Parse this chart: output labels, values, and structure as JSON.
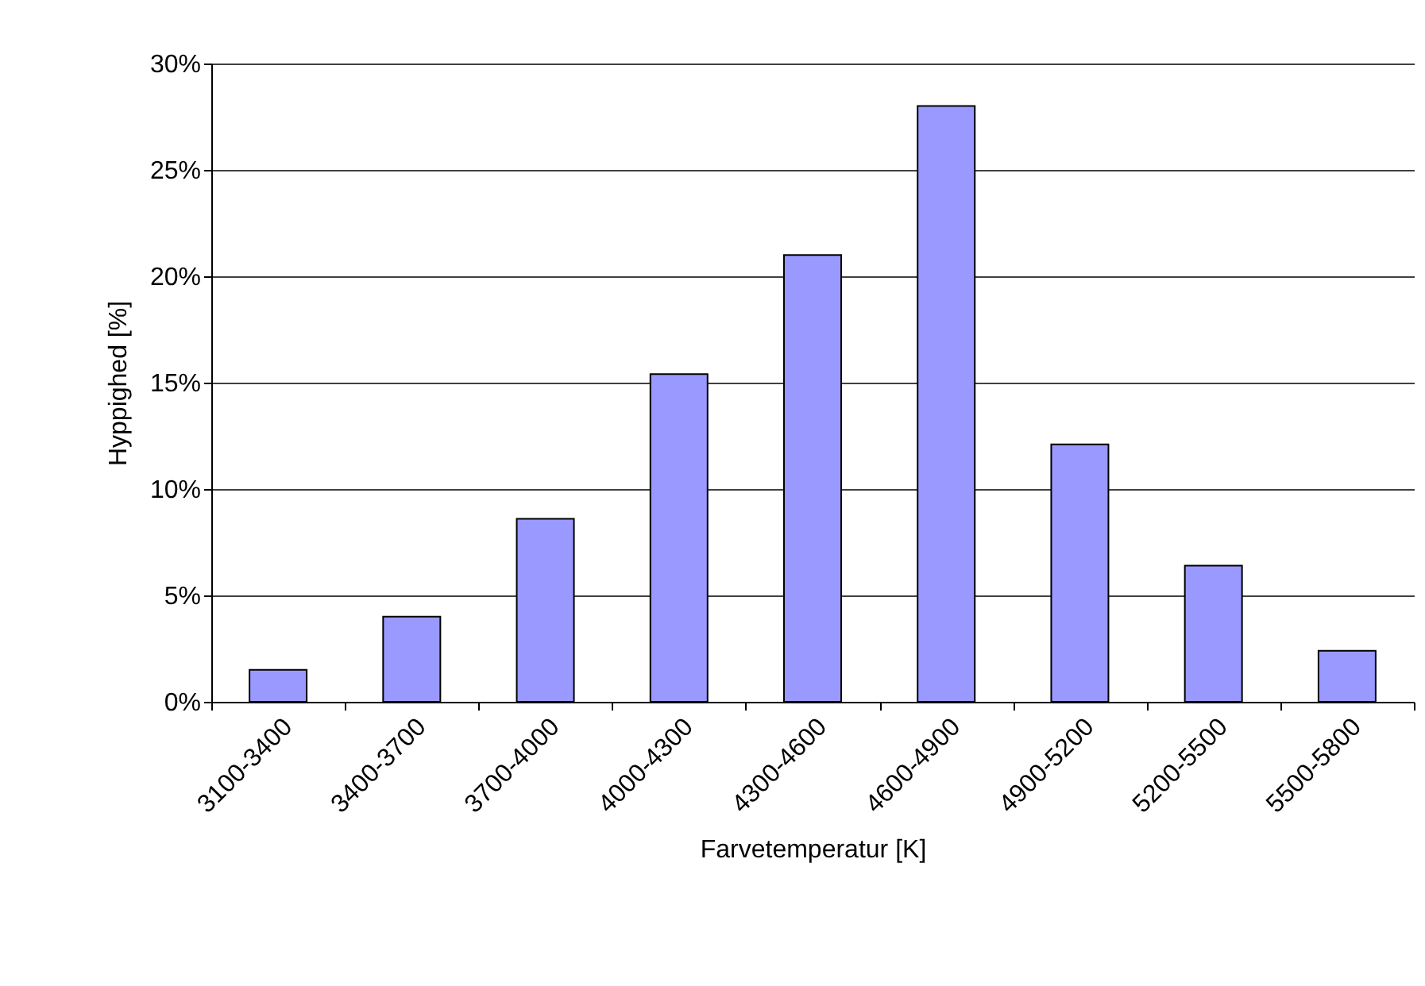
{
  "chart_data": {
    "type": "bar",
    "xlabel": "Farvetemperatur [K]",
    "ylabel": "Hyppighed [%]",
    "categories": [
      "3100-3400",
      "3400-3700",
      "3700-4000",
      "4000-4300",
      "4300-4600",
      "4600-4900",
      "4900-5200",
      "5200-5500",
      "5500-5800"
    ],
    "values": [
      1.5,
      4.0,
      8.6,
      15.4,
      21.0,
      28.0,
      12.1,
      6.4,
      2.4
    ],
    "color": "#9999ff",
    "ylim": [
      0,
      30
    ],
    "yticks": [
      {
        "value": 0,
        "label": "0%"
      },
      {
        "value": 5,
        "label": "5%"
      },
      {
        "value": 10,
        "label": "10%"
      },
      {
        "value": 15,
        "label": "15%"
      },
      {
        "value": 20,
        "label": "20%"
      },
      {
        "value": 25,
        "label": "25%"
      },
      {
        "value": 30,
        "label": "30%"
      }
    ],
    "grid": "y"
  }
}
